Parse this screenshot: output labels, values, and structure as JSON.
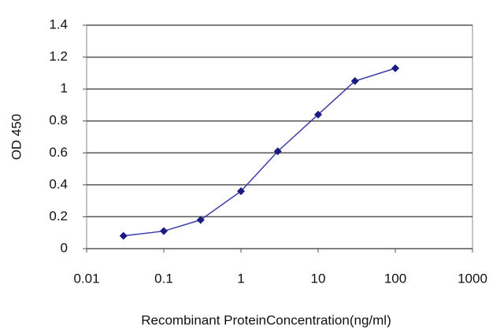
{
  "chart_data": {
    "type": "line",
    "x": [
      0.03,
      0.1,
      0.3,
      1,
      3,
      10,
      30,
      100
    ],
    "values": [
      0.08,
      0.11,
      0.18,
      0.36,
      0.61,
      0.84,
      1.05,
      1.13
    ],
    "color": "#3a3aa8",
    "marker_color": "#1a1a80",
    "xscale": "log",
    "xlim": [
      0.01,
      1000
    ],
    "xticks": [
      0.01,
      0.1,
      1,
      10,
      100,
      1000
    ],
    "ylim": [
      0,
      1.4
    ],
    "yticks": [
      0,
      0.2,
      0.4,
      0.6,
      0.8,
      1,
      1.2,
      1.4
    ],
    "grid": true,
    "ylabel": "OD 450",
    "xlabel": "Recombinant ProteinConcentration(ng/ml)"
  }
}
